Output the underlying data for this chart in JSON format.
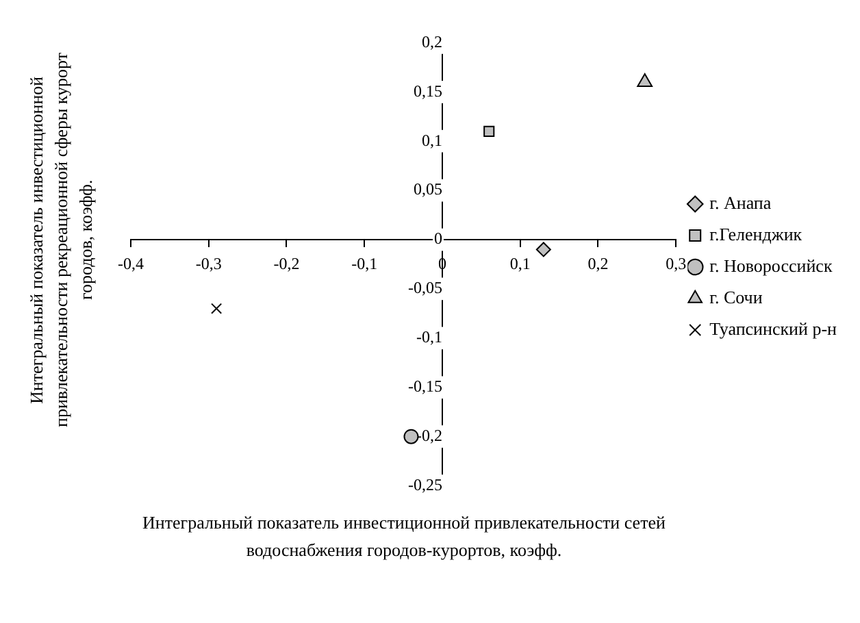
{
  "chart_data": {
    "type": "scatter",
    "xlabel": "Интегральный показатель инвестиционной привлекательности сетей водоснабжения городов-курортов, коэфф.",
    "ylabel": "Интегральный показатель инвестиционной привлекательности рекреационной сферы курорт городов, коэфф.",
    "xlim": [
      -0.4,
      0.3
    ],
    "xticks": [
      {
        "value": -0.4,
        "label": "-0,4"
      },
      {
        "value": -0.3,
        "label": "-0,3"
      },
      {
        "value": -0.2,
        "label": "-0,2"
      },
      {
        "value": -0.1,
        "label": "-0,1"
      },
      0,
      {
        "value": 0.1,
        "label": "0,1"
      },
      {
        "value": 0.2,
        "label": "0,2"
      },
      {
        "value": 0.3,
        "label": "0,3"
      }
    ],
    "ylim": [
      -0.25,
      0.2
    ],
    "yticks": [
      {
        "value": -0.25,
        "label": "-0,25"
      },
      {
        "value": -0.2,
        "label": "-0,2"
      },
      {
        "value": -0.15,
        "label": "-0,15"
      },
      {
        "value": -0.1,
        "label": "-0,1"
      },
      {
        "value": -0.05,
        "label": "-0,05"
      },
      0,
      {
        "value": 0.05,
        "label": "0,05"
      },
      {
        "value": 0.1,
        "label": "0,1"
      },
      {
        "value": 0.15,
        "label": "0,15"
      },
      {
        "value": 0.2,
        "label": "0,2"
      }
    ],
    "grid": false,
    "legend": "right",
    "series": [
      {
        "name": "г. Анапа",
        "color": "#c0c0c0",
        "marker": "diamond",
        "x": [
          0.13
        ],
        "values": [
          -0.01
        ]
      },
      {
        "name": "г.Геленджик",
        "color": "#c0c0c0",
        "marker": "square",
        "x": [
          0.06
        ],
        "values": [
          0.11
        ]
      },
      {
        "name": "г. Новороссийск",
        "color": "#c0c0c0",
        "marker": "circle",
        "x": [
          -0.04
        ],
        "values": [
          -0.2
        ]
      },
      {
        "name": "г. Сочи",
        "color": "#c0c0c0",
        "marker": "triangle",
        "x": [
          0.26
        ],
        "values": [
          0.16
        ]
      },
      {
        "name": "Туапсинский р-н",
        "color": "#000000",
        "marker": "cross",
        "x": [
          -0.29
        ],
        "values": [
          -0.07
        ]
      }
    ]
  }
}
